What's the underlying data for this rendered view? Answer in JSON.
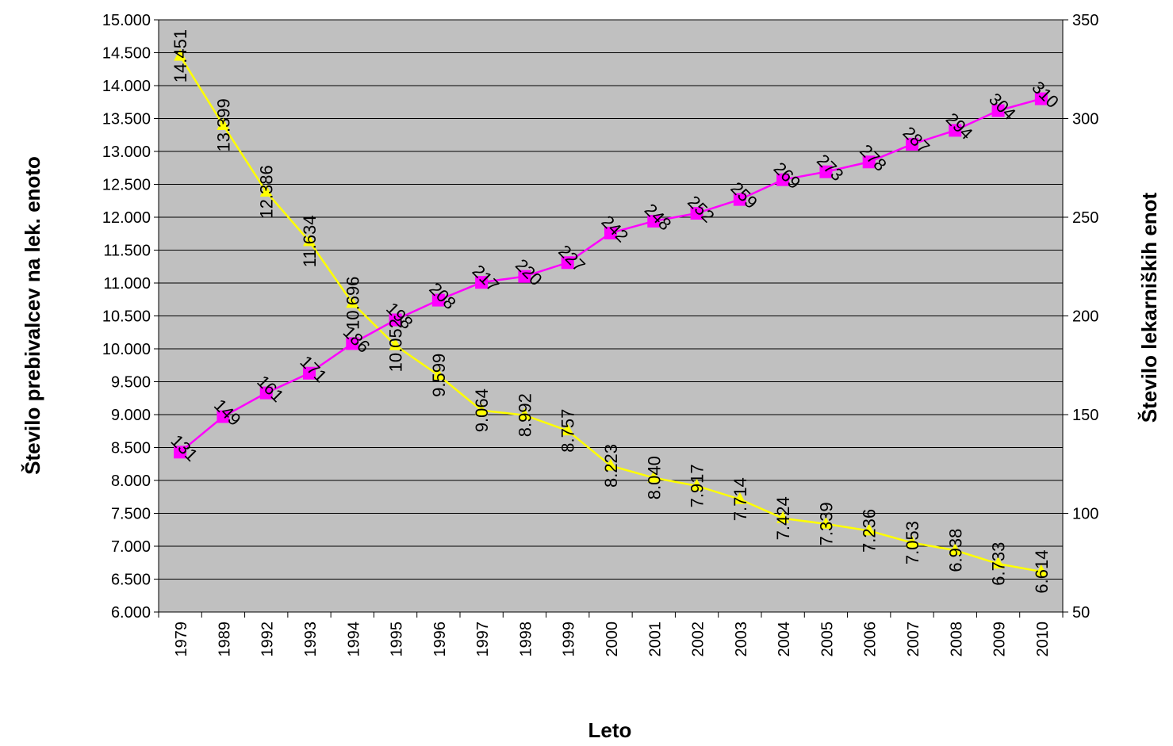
{
  "chart_data": {
    "type": "line",
    "title": "",
    "xlabel": "Leto",
    "ylabel_left": "Število prebivalcev na lek. enoto",
    "ylabel_right": "Število lekarniških enot",
    "categories": [
      "1979",
      "1989",
      "1992",
      "1993",
      "1994",
      "1995",
      "1996",
      "1997",
      "1998",
      "1999",
      "2000",
      "2001",
      "2002",
      "2003",
      "2004",
      "2005",
      "2006",
      "2007",
      "2008",
      "2009",
      "2010"
    ],
    "ylim_left": [
      6000,
      15000
    ],
    "ylim_right": [
      50,
      350
    ],
    "yticks_left": [
      "6.000",
      "6.500",
      "7.000",
      "7.500",
      "8.000",
      "8.500",
      "9.000",
      "9.500",
      "10.000",
      "10.500",
      "11.000",
      "11.500",
      "12.000",
      "12.500",
      "13.000",
      "13.500",
      "14.000",
      "14.500",
      "15.000"
    ],
    "yticks_right": [
      "50",
      "100",
      "150",
      "200",
      "250",
      "300",
      "350"
    ],
    "grid": true,
    "plot_background": "#c0c0c0",
    "series": [
      {
        "axis": "left",
        "color": "#ffff00",
        "marker": "triangle",
        "values": [
          14451,
          13399,
          12386,
          11634,
          10696,
          10052,
          9599,
          9064,
          8992,
          8757,
          8223,
          8040,
          7917,
          7714,
          7424,
          7339,
          7236,
          7053,
          6938,
          6733,
          6614
        ],
        "labels": [
          "14.451",
          "13.399",
          "12.386",
          "11.634",
          "10.696",
          "10.052",
          "9.599",
          "9.064",
          "8.992",
          "8.757",
          "8.223",
          "8.040",
          "7.917",
          "7.714",
          "7.424",
          "7.339",
          "7.236",
          "7.053",
          "6.938",
          "6.733",
          "6.614"
        ]
      },
      {
        "axis": "right",
        "color": "#ff00ff",
        "marker": "square",
        "values": [
          131,
          149,
          161,
          171,
          186,
          198,
          208,
          217,
          220,
          227,
          242,
          248,
          252,
          259,
          269,
          273,
          278,
          287,
          294,
          304,
          310
        ],
        "labels": [
          "131",
          "149",
          "161",
          "171",
          "186",
          "198",
          "208",
          "217",
          "220",
          "227",
          "242",
          "248",
          "252",
          "259",
          "269",
          "273",
          "278",
          "287",
          "294",
          "304",
          "310"
        ]
      }
    ]
  }
}
